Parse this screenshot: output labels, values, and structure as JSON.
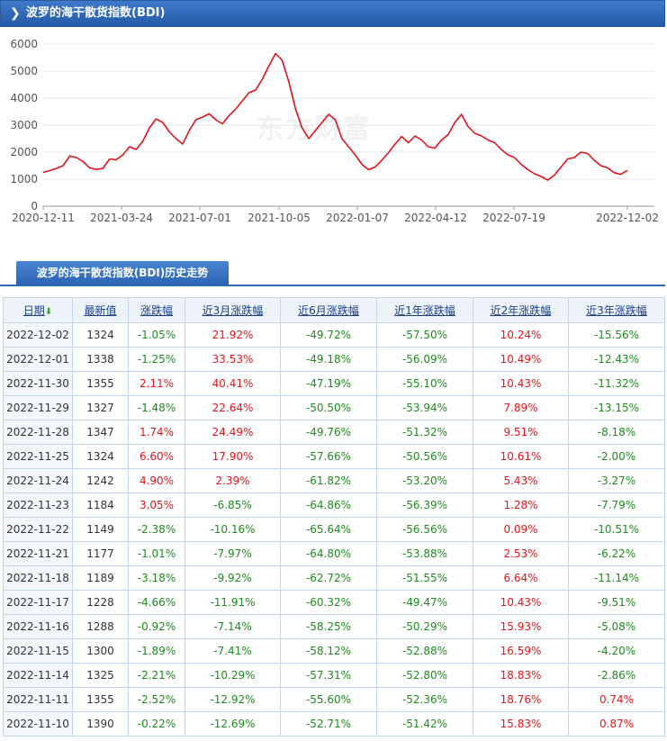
{
  "header": {
    "title": "波罗的海干散货指数(BDI)"
  },
  "tab": {
    "label": "波罗的海干散货指数(BDI)历史走势"
  },
  "watermark": "东方财富",
  "chart_data": {
    "type": "line",
    "title": "",
    "xlabel": "",
    "ylabel": "",
    "ylim": [
      0,
      6000
    ],
    "y_ticks": [
      0,
      1000,
      2000,
      3000,
      4000,
      5000,
      6000
    ],
    "x_tick_labels": [
      "2020-12-11",
      "2021-03-24",
      "2021-07-01",
      "2021-10-05",
      "2022-01-07",
      "2022-04-12",
      "2022-07-19",
      "2022-12-02"
    ],
    "grid": "horizontal",
    "color": "#e0121c",
    "values": [
      1250,
      1320,
      1400,
      1500,
      1860,
      1800,
      1650,
      1420,
      1360,
      1400,
      1750,
      1720,
      1900,
      2200,
      2100,
      2400,
      2900,
      3230,
      3100,
      2750,
      2500,
      2300,
      2800,
      3200,
      3300,
      3420,
      3200,
      3050,
      3350,
      3600,
      3900,
      4200,
      4300,
      4700,
      5200,
      5650,
      5400,
      4600,
      3600,
      2900,
      2500,
      2800,
      3100,
      3400,
      3200,
      2500,
      2200,
      1900,
      1550,
      1350,
      1450,
      1700,
      1980,
      2300,
      2580,
      2350,
      2600,
      2450,
      2200,
      2150,
      2450,
      2650,
      3100,
      3400,
      2950,
      2700,
      2600,
      2450,
      2350,
      2100,
      1900,
      1800,
      1550,
      1350,
      1200,
      1100,
      965,
      1150,
      1450,
      1750,
      1800,
      2000,
      1950,
      1700,
      1500,
      1420,
      1240,
      1180,
      1324
    ]
  },
  "table": {
    "headers": [
      "日期",
      "最新值",
      "涨跌幅",
      "近3月涨跌幅",
      "近6月涨跌幅",
      "近1年涨跌幅",
      "近2年涨跌幅",
      "近3年涨跌幅"
    ],
    "rows": [
      [
        "2022-12-02",
        "1324",
        "-1.05%",
        "21.92%",
        "-49.72%",
        "-57.50%",
        "10.24%",
        "-15.56%"
      ],
      [
        "2022-12-01",
        "1338",
        "-1.25%",
        "33.53%",
        "-49.18%",
        "-56.09%",
        "10.49%",
        "-12.43%"
      ],
      [
        "2022-11-30",
        "1355",
        "2.11%",
        "40.41%",
        "-47.19%",
        "-55.10%",
        "10.43%",
        "-11.32%"
      ],
      [
        "2022-11-29",
        "1327",
        "-1.48%",
        "22.64%",
        "-50.50%",
        "-53.94%",
        "7.89%",
        "-13.15%"
      ],
      [
        "2022-11-28",
        "1347",
        "1.74%",
        "24.49%",
        "-49.76%",
        "-51.32%",
        "9.51%",
        "-8.18%"
      ],
      [
        "2022-11-25",
        "1324",
        "6.60%",
        "17.90%",
        "-57.66%",
        "-50.56%",
        "10.61%",
        "-2.00%"
      ],
      [
        "2022-11-24",
        "1242",
        "4.90%",
        "2.39%",
        "-61.82%",
        "-53.20%",
        "5.43%",
        "-3.27%"
      ],
      [
        "2022-11-23",
        "1184",
        "3.05%",
        "-6.85%",
        "-64.86%",
        "-56.39%",
        "1.28%",
        "-7.79%"
      ],
      [
        "2022-11-22",
        "1149",
        "-2.38%",
        "-10.16%",
        "-65.64%",
        "-56.56%",
        "0.09%",
        "-10.51%"
      ],
      [
        "2022-11-21",
        "1177",
        "-1.01%",
        "-7.97%",
        "-64.80%",
        "-53.88%",
        "2.53%",
        "-6.22%"
      ],
      [
        "2022-11-18",
        "1189",
        "-3.18%",
        "-9.92%",
        "-62.72%",
        "-51.55%",
        "6.64%",
        "-11.14%"
      ],
      [
        "2022-11-17",
        "1228",
        "-4.66%",
        "-11.91%",
        "-60.32%",
        "-49.47%",
        "10.43%",
        "-9.51%"
      ],
      [
        "2022-11-16",
        "1288",
        "-0.92%",
        "-7.14%",
        "-58.25%",
        "-50.29%",
        "15.93%",
        "-5.08%"
      ],
      [
        "2022-11-15",
        "1300",
        "-1.89%",
        "-7.41%",
        "-58.12%",
        "-52.88%",
        "16.59%",
        "-4.20%"
      ],
      [
        "2022-11-14",
        "1325",
        "-2.21%",
        "-10.29%",
        "-57.31%",
        "-52.80%",
        "18.83%",
        "-2.86%"
      ],
      [
        "2022-11-11",
        "1355",
        "-2.52%",
        "-12.92%",
        "-55.60%",
        "-52.36%",
        "18.76%",
        "0.74%"
      ],
      [
        "2022-11-10",
        "1390",
        "-0.22%",
        "-12.69%",
        "-52.71%",
        "-51.42%",
        "15.83%",
        "0.87%"
      ]
    ]
  }
}
